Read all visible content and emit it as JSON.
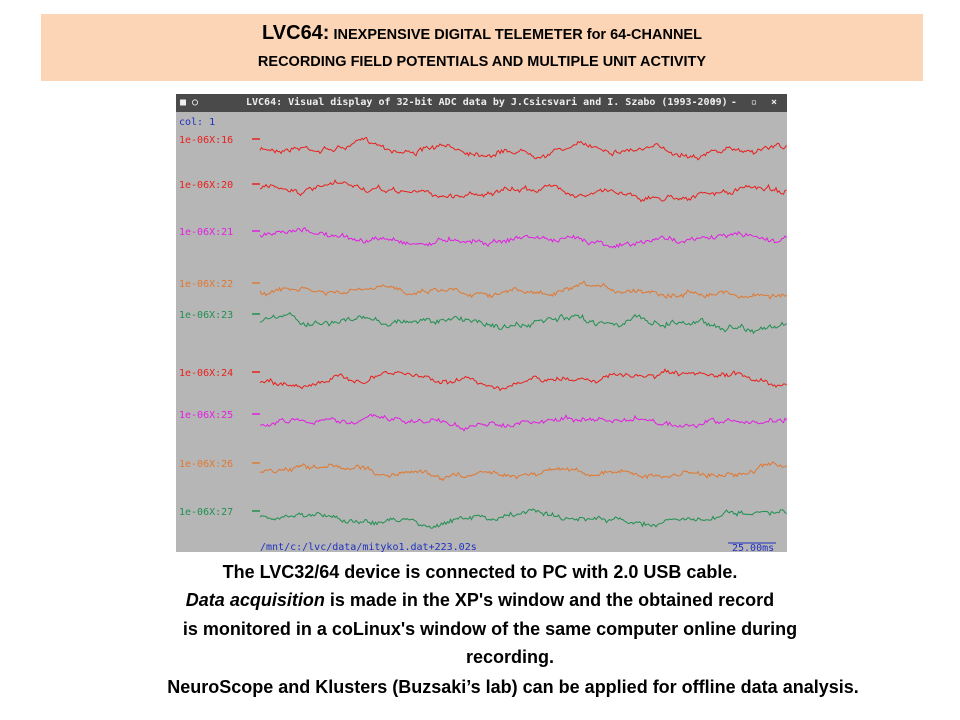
{
  "header": {
    "title_lead": "LVC64:",
    "title_rest": "INEXPENSIVE DIGITAL TELEMETER for 64-CHANNEL",
    "subtitle": "RECORDING FIELD POTENTIALS AND MULTIPLE UNIT ACTIVITY"
  },
  "window": {
    "title": "LVC64: Visual display of 32-bit ADC data  by J.Csicsvari and I. Szabo (1993-2009)",
    "col_label": "col: 1",
    "channels": [
      "1e-06X:16",
      "1e-06X:20",
      "1e-06X:21",
      "1e-06X:22",
      "1e-06X:23",
      "1e-06X:24",
      "1e-06X:25",
      "1e-06X:26",
      "1e-06X:27"
    ],
    "file_path": "/mnt/c:/lvc/data/mityko1.dat+223.02s",
    "scale": "25.00ms"
  },
  "body": {
    "line1": "The  LVC32/64 device is connected to PC  with  2.0 USB cable.",
    "line2_italic": "Data acquisition",
    "line2_rest": " is made in the XP's window and the obtained record",
    "line3": "is   monitored in a coLinux's window of the same computer online during",
    "line4": "recording.",
    "line5": "NeuroScope and Klusters  (Buzsaki’s lab) can be applied for offline data analysis."
  }
}
